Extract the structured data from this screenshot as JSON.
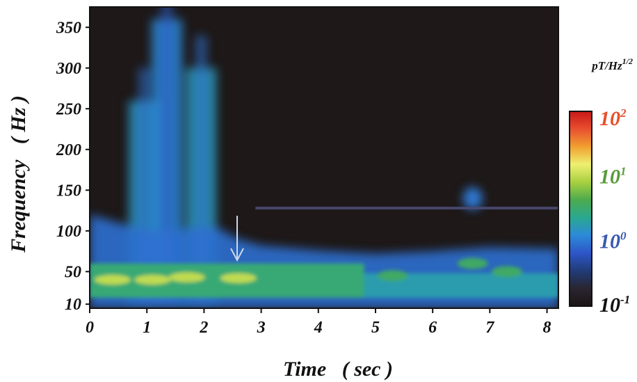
{
  "chart_data": {
    "type": "heatmap",
    "title": "",
    "xlabel": "Time   ( sec )",
    "ylabel": "Frequency   ( Hz )",
    "xlim": [
      0,
      8.2
    ],
    "ylim": [
      5,
      375
    ],
    "x_ticks": [
      0,
      1,
      2,
      3,
      4,
      5,
      6,
      7,
      8
    ],
    "x_tick_labels": [
      "0",
      "1",
      "2",
      "3",
      "4",
      "5",
      "6",
      "7",
      "8"
    ],
    "y_ticks": [
      10,
      50,
      100,
      150,
      200,
      250,
      300,
      350
    ],
    "y_tick_labels": [
      "10",
      "50",
      "100",
      "150",
      "200",
      "250",
      "300",
      "350"
    ],
    "colorbar": {
      "units_base": "pT/Hz",
      "units_exp": "1/2",
      "scale": "log",
      "range": [
        0.1,
        100
      ],
      "ticks": [
        {
          "base": "10",
          "exp": "2",
          "value": 100,
          "color": "#e8502a"
        },
        {
          "base": "10",
          "exp": "1",
          "value": 10,
          "color": "#5a9a3a"
        },
        {
          "base": "10",
          "exp": "0",
          "value": 1,
          "color": "#3a5ab0"
        },
        {
          "base": "10",
          "exp": "-1",
          "value": 0.1,
          "color": "#111111"
        }
      ],
      "stops": [
        "#1c1515",
        "#2a2530",
        "#203c78",
        "#2e56c8",
        "#2c8ad8",
        "#2aa890",
        "#4caa4e",
        "#a8d040",
        "#eef070",
        "#f0a030",
        "#e85030",
        "#c81818"
      ]
    },
    "annotation": "arrow at t≈2.6 s pointing to the ≈55 Hz band",
    "features": {
      "low_band": {
        "f_low": 10,
        "f_high": 55,
        "peak_level": 10
      },
      "bursts": [
        {
          "t": 0.95,
          "f_top": 260,
          "level": 1.5
        },
        {
          "t": 1.35,
          "f_top": 360,
          "level": 1.2
        },
        {
          "t": 1.95,
          "f_top": 300,
          "level": 1.6
        }
      ],
      "line_component": {
        "f": 128,
        "t_start": 2.9,
        "t_end": 8.2,
        "level": 0.4
      },
      "blob": {
        "t": 6.7,
        "f": 140,
        "level": 1.0
      }
    }
  }
}
